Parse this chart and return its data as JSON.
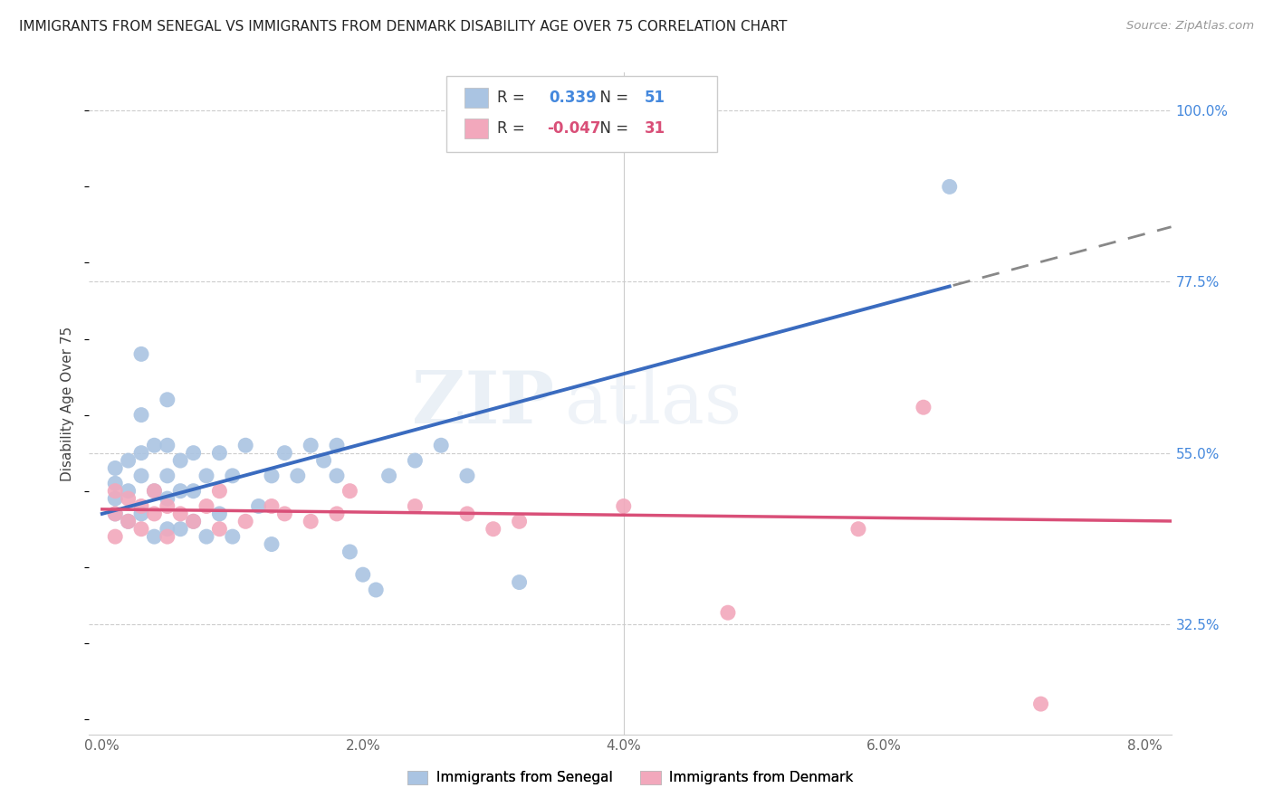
{
  "title": "IMMIGRANTS FROM SENEGAL VS IMMIGRANTS FROM DENMARK DISABILITY AGE OVER 75 CORRELATION CHART",
  "source": "Source: ZipAtlas.com",
  "xlabel_ticks": [
    "0.0%",
    "2.0%",
    "4.0%",
    "6.0%",
    "8.0%"
  ],
  "xlabel_vals": [
    0.0,
    0.02,
    0.04,
    0.06,
    0.08
  ],
  "ylabel": "Disability Age Over 75",
  "ylabel_ticks": [
    "100.0%",
    "77.5%",
    "55.0%",
    "32.5%"
  ],
  "ylabel_vals": [
    1.0,
    0.775,
    0.55,
    0.325
  ],
  "xlim": [
    -0.001,
    0.082
  ],
  "ylim": [
    0.18,
    1.05
  ],
  "senegal_R": 0.339,
  "senegal_N": 51,
  "denmark_R": -0.047,
  "denmark_N": 31,
  "senegal_color": "#aac4e2",
  "denmark_color": "#f2a8bc",
  "senegal_line_color": "#3a6bbf",
  "denmark_line_color": "#d94f78",
  "watermark_zip": "ZIP",
  "watermark_atlas": "atlas",
  "senegal_x": [
    0.001,
    0.001,
    0.001,
    0.001,
    0.002,
    0.002,
    0.002,
    0.003,
    0.003,
    0.003,
    0.003,
    0.003,
    0.004,
    0.004,
    0.004,
    0.005,
    0.005,
    0.005,
    0.005,
    0.005,
    0.006,
    0.006,
    0.006,
    0.007,
    0.007,
    0.007,
    0.008,
    0.008,
    0.009,
    0.009,
    0.01,
    0.01,
    0.011,
    0.012,
    0.013,
    0.013,
    0.014,
    0.015,
    0.016,
    0.017,
    0.018,
    0.018,
    0.019,
    0.02,
    0.021,
    0.022,
    0.024,
    0.026,
    0.028,
    0.032,
    0.065
  ],
  "senegal_y": [
    0.47,
    0.49,
    0.51,
    0.53,
    0.46,
    0.5,
    0.54,
    0.47,
    0.52,
    0.55,
    0.6,
    0.68,
    0.44,
    0.5,
    0.56,
    0.45,
    0.49,
    0.52,
    0.56,
    0.62,
    0.45,
    0.5,
    0.54,
    0.46,
    0.5,
    0.55,
    0.44,
    0.52,
    0.47,
    0.55,
    0.44,
    0.52,
    0.56,
    0.48,
    0.43,
    0.52,
    0.55,
    0.52,
    0.56,
    0.54,
    0.52,
    0.56,
    0.42,
    0.39,
    0.37,
    0.52,
    0.54,
    0.56,
    0.52,
    0.38,
    0.9
  ],
  "denmark_x": [
    0.001,
    0.001,
    0.001,
    0.002,
    0.002,
    0.003,
    0.003,
    0.004,
    0.004,
    0.005,
    0.005,
    0.006,
    0.007,
    0.008,
    0.009,
    0.009,
    0.011,
    0.013,
    0.014,
    0.016,
    0.018,
    0.019,
    0.024,
    0.028,
    0.03,
    0.032,
    0.04,
    0.048,
    0.058,
    0.063,
    0.072
  ],
  "denmark_y": [
    0.47,
    0.5,
    0.44,
    0.46,
    0.49,
    0.45,
    0.48,
    0.47,
    0.5,
    0.44,
    0.48,
    0.47,
    0.46,
    0.48,
    0.45,
    0.5,
    0.46,
    0.48,
    0.47,
    0.46,
    0.47,
    0.5,
    0.48,
    0.47,
    0.45,
    0.46,
    0.48,
    0.34,
    0.45,
    0.61,
    0.22
  ]
}
